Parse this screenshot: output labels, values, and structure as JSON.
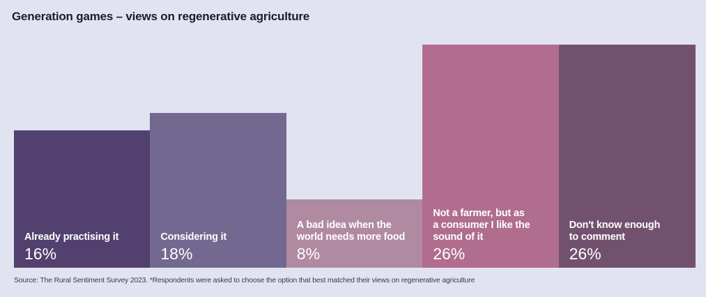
{
  "chart_data": {
    "type": "bar",
    "title": "Generation games – views on regenerative agriculture",
    "categories": [
      "Already practising it",
      "Considering it",
      "A bad idea when the\nworld needs more food",
      "Not a farmer, but as\na consumer I like the\nsound of it",
      "Don't know enough\nto comment"
    ],
    "values": [
      16,
      18,
      8,
      26,
      26
    ],
    "value_labels": [
      "16%",
      "18%",
      "8%",
      "26%",
      "26%"
    ],
    "colors": [
      "#52406e",
      "#73688f",
      "#b08aa0",
      "#b06d8e",
      "#72516f"
    ],
    "ylim": [
      0,
      26
    ],
    "grid": false,
    "xlabel": "",
    "ylabel": ""
  },
  "source": "Source: The Rural Sentiment Survey 2023. *Respondents were asked to choose the option that best matched their views on regenerative agriculture"
}
